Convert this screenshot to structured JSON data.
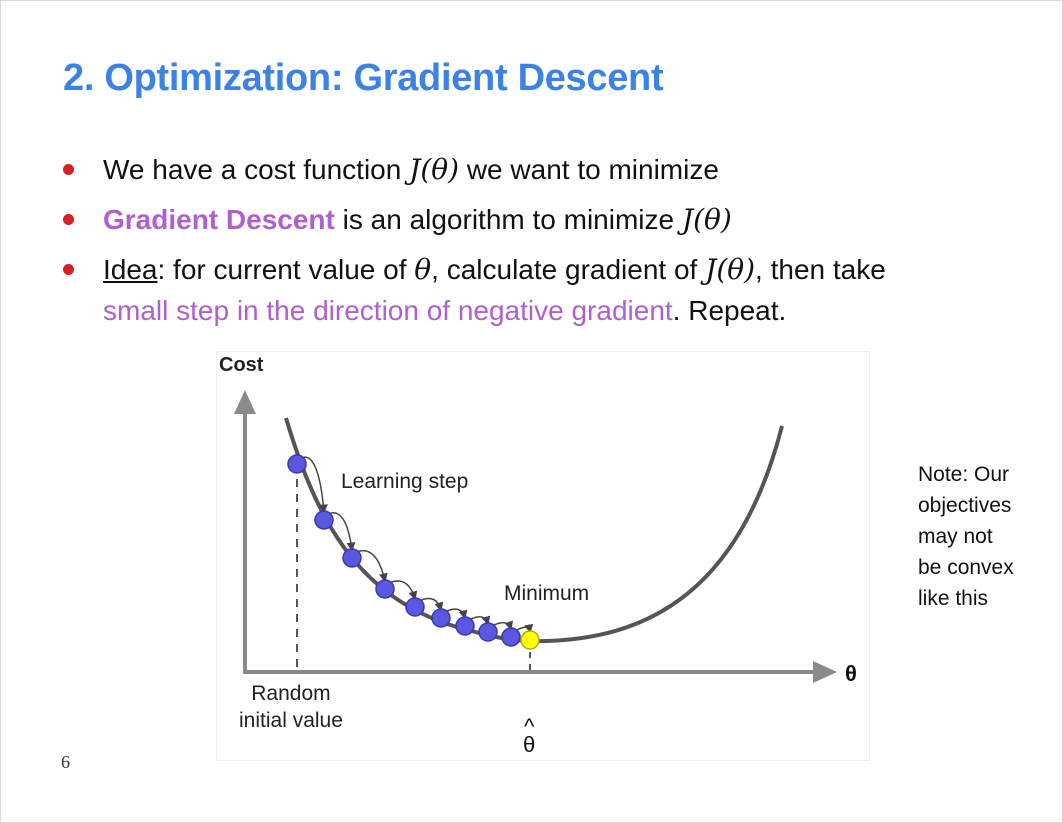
{
  "slide": {
    "title": "2. Optimization: Gradient Descent",
    "number": "6"
  },
  "bullets": [
    {
      "a": "We have a cost function ",
      "math": "J(θ)",
      "b": " we want to minimize"
    },
    {
      "emph": "Gradient Descent",
      "a": " is an algorithm to minimize ",
      "math": "J(θ)"
    },
    {
      "idea": "Idea",
      "a": ": for current value of ",
      "math1": "θ",
      "b": ", calculate gradient of ",
      "math2": "J(θ)",
      "c": ", then take",
      "purple": "small step in the direction of negative gradient",
      "d": ". Repeat."
    }
  ],
  "figure": {
    "y_label": "Cost",
    "x_label": "θ",
    "learning_step": "Learning step",
    "minimum": "Minimum",
    "random_line1": "Random",
    "random_line2": "initial value",
    "theta_hat_caret": "^",
    "theta_hat": "θ",
    "step_count": 9,
    "colors": {
      "steps": "#5a58e0",
      "minimum_point": "#ffff00",
      "curve": "#555555"
    }
  },
  "note": {
    "lines": [
      "Note: Our",
      "objectives",
      "may not",
      "be convex",
      "like this"
    ]
  }
}
